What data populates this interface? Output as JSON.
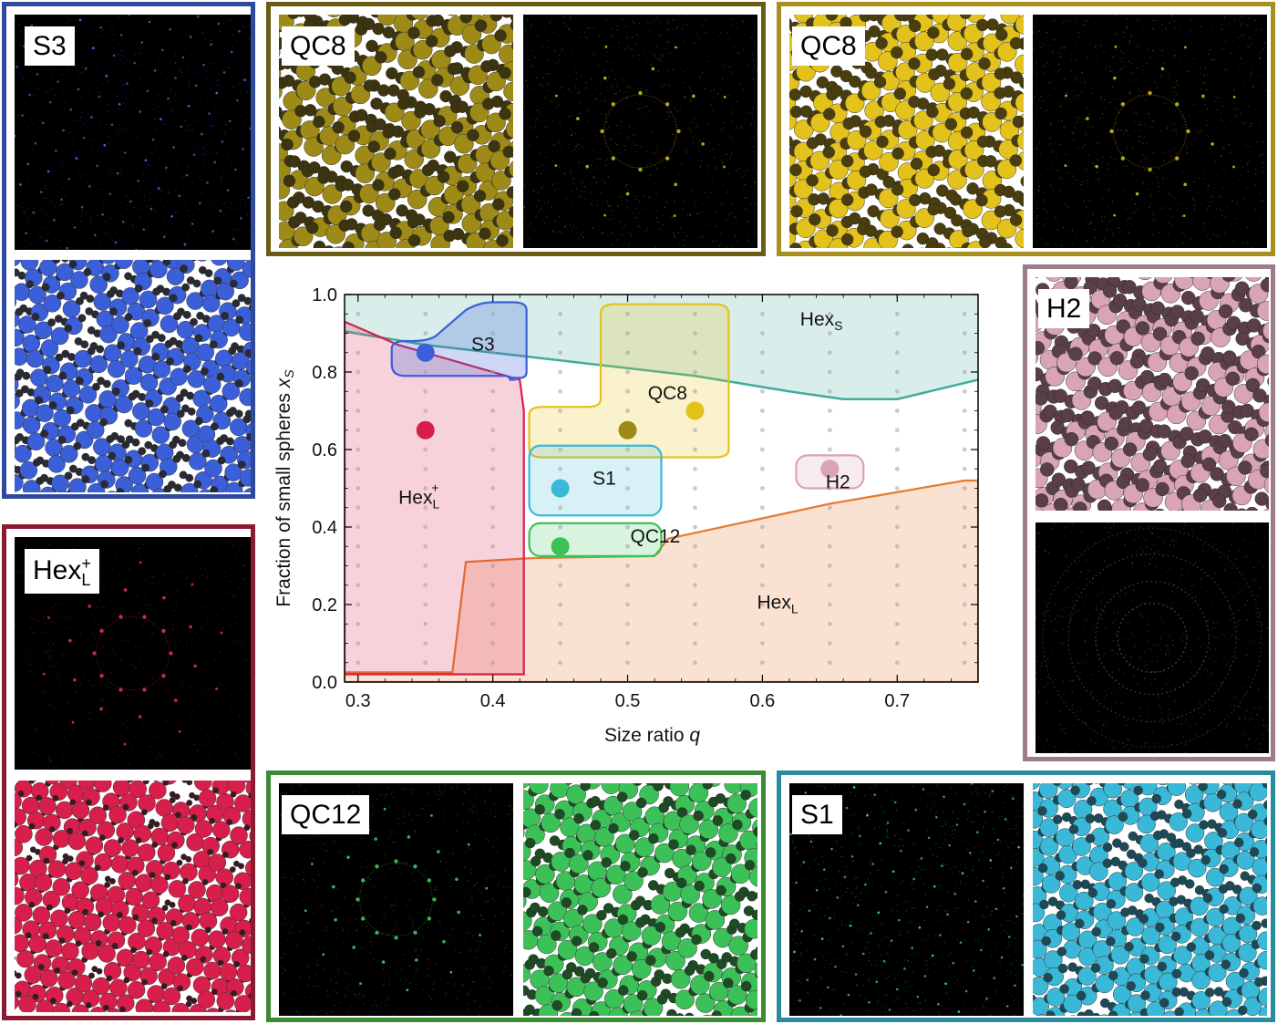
{
  "colors": {
    "S3": "#3b5fd8",
    "QC8_dark": "#9e8a16",
    "QC8_light": "#e4c21c",
    "H2": "#d9a3b8",
    "Hex_L_plus": "#d81e4b",
    "QC12": "#3cc158",
    "S1": "#3ab8d8",
    "Hex_L": "#e67a30",
    "Hex_S": "#42ab9c"
  },
  "panels": {
    "s3": {
      "label": "S3",
      "border": "#2f4a9c"
    },
    "qc8a": {
      "label": "QC8",
      "border": "#6b5c14"
    },
    "qc8b": {
      "label": "QC8",
      "border": "#a89020"
    },
    "h2": {
      "label": "H2",
      "border": "#9c7c88"
    },
    "hexl": {
      "label_main": "Hex",
      "label_sub": "L",
      "label_sup": "+",
      "border": "#8a1c32"
    },
    "qc12": {
      "label": "QC12",
      "border": "#3c8a34"
    },
    "s1": {
      "label": "S1",
      "border": "#2a8aa0"
    }
  },
  "chart_data": {
    "type": "scatter",
    "xlabel": "Size ratio",
    "xlabel_var": "q",
    "ylabel": "Fraction of small spheres",
    "ylabel_var": "x",
    "ylabel_sub": "S",
    "xlim": [
      0.29,
      0.76
    ],
    "ylim": [
      0.0,
      1.0
    ],
    "xticks": [
      "0.3",
      "0.4",
      "0.5",
      "0.6",
      "0.7"
    ],
    "yticks": [
      "0.0",
      "0.2",
      "0.4",
      "0.6",
      "0.8",
      "1.0"
    ],
    "xtick_values": [
      0.3,
      0.4,
      0.5,
      0.6,
      0.7
    ],
    "ytick_values": [
      0.0,
      0.2,
      0.4,
      0.6,
      0.8,
      1.0
    ],
    "grid_points": {
      "x_start": 0.3,
      "x_step": 0.05,
      "x_count": 10,
      "y_start": 0.05,
      "y_step": 0.05,
      "y_count": 19
    },
    "points": [
      {
        "name": "S3",
        "x": 0.35,
        "y": 0.85,
        "color": "#3b5fd8"
      },
      {
        "name": "Hex_L+",
        "x": 0.35,
        "y": 0.65,
        "color": "#d81e4b"
      },
      {
        "name": "QC8 (dark)",
        "x": 0.5,
        "y": 0.65,
        "color": "#9e8a16"
      },
      {
        "name": "QC8 (light)",
        "x": 0.55,
        "y": 0.7,
        "color": "#e4c21c"
      },
      {
        "name": "S1",
        "x": 0.45,
        "y": 0.5,
        "color": "#3ab8d8"
      },
      {
        "name": "QC12",
        "x": 0.45,
        "y": 0.35,
        "color": "#3cc158"
      },
      {
        "name": "H2",
        "x": 0.65,
        "y": 0.55,
        "color": "#d9a3b8"
      }
    ],
    "region_labels": [
      {
        "text": "S3",
        "x": 0.384,
        "y": 0.855
      },
      {
        "text": "QC8",
        "x": 0.515,
        "y": 0.73
      },
      {
        "text": "Hex",
        "sub": "S",
        "x": 0.628,
        "y": 0.92
      },
      {
        "text": "S1",
        "x": 0.474,
        "y": 0.51
      },
      {
        "text": "H2",
        "x": 0.647,
        "y": 0.5
      },
      {
        "text": "Hex",
        "sub": "L",
        "sup": "+",
        "x": 0.33,
        "y": 0.46
      },
      {
        "text": "QC12",
        "x": 0.502,
        "y": 0.36
      },
      {
        "text": "Hex",
        "sub": "L",
        "x": 0.596,
        "y": 0.19
      }
    ]
  }
}
